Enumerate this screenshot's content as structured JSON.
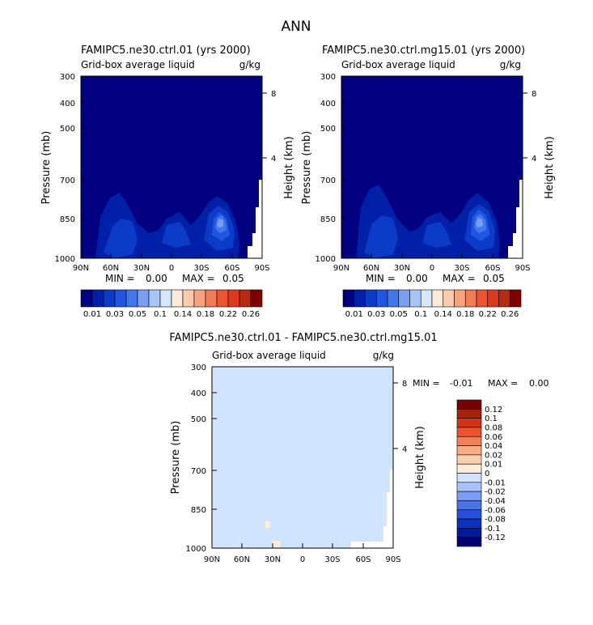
{
  "page": {
    "main_title": "ANN"
  },
  "colors": {
    "seq_levels": [
      "#000080",
      "#0020a8",
      "#0a3cc8",
      "#2056e0",
      "#4477ea",
      "#7a9ef2",
      "#a8c4f8",
      "#d6e6fd",
      "#fcebd8",
      "#fbcbae",
      "#f8a27e",
      "#f47a55",
      "#ee5431",
      "#dc3a1a",
      "#b82a10",
      "#800000"
    ],
    "diff_levels": [
      "#00006e",
      "#001a9c",
      "#0a30c2",
      "#2750e0",
      "#4a72ec",
      "#7b9ef4",
      "#a8c2fa",
      "#d2e4fd",
      "#fdecd8",
      "#fbd0b0",
      "#f8ac84",
      "#f28058",
      "#ea5530",
      "#d03616",
      "#a82008",
      "#780000"
    ]
  },
  "chart_data": [
    {
      "type": "contour",
      "title": "FAMIPC5.ne30.ctrl.01 (yrs 2000)",
      "subtitle": "Grid-box average liquid",
      "units": "g/kg",
      "ylabel": "Pressure (mb)",
      "ylabel_right": "Height (km)",
      "x_ticks": [
        "90N",
        "60N",
        "30N",
        "0",
        "30S",
        "60S",
        "90S"
      ],
      "y_ticks": [
        "300",
        "400",
        "500",
        "700",
        "850",
        "1000"
      ],
      "y_ticks_right": [
        "8",
        "4"
      ],
      "min_label": "MIN =",
      "min_value": "0.00",
      "max_label": "MAX =",
      "max_value": "0.05",
      "colorbar_labels": [
        "0.01",
        "0.03",
        "0.05",
        "0.1",
        "0.14",
        "0.18",
        "0.22",
        "0.26"
      ],
      "ylim": [
        1000,
        300
      ]
    },
    {
      "type": "contour",
      "title": "FAMIPC5.ne30.ctrl.mg15.01 (yrs 2000)",
      "subtitle": "Grid-box average liquid",
      "units": "g/kg",
      "ylabel": "Pressure (mb)",
      "ylabel_right": "Height (km)",
      "x_ticks": [
        "90N",
        "60N",
        "30N",
        "0",
        "30S",
        "60S",
        "90S"
      ],
      "y_ticks": [
        "300",
        "400",
        "500",
        "700",
        "850",
        "1000"
      ],
      "y_ticks_right": [
        "8",
        "4"
      ],
      "min_label": "MIN =",
      "min_value": "0.00",
      "max_label": "MAX =",
      "max_value": "0.05",
      "colorbar_labels": [
        "0.01",
        "0.03",
        "0.05",
        "0.1",
        "0.14",
        "0.18",
        "0.22",
        "0.26"
      ],
      "ylim": [
        1000,
        300
      ]
    },
    {
      "type": "contour",
      "title": "FAMIPC5.ne30.ctrl.01 - FAMIPC5.ne30.ctrl.mg15.01",
      "subtitle": "Grid-box average liquid",
      "units": "g/kg",
      "ylabel": "Pressure (mb)",
      "ylabel_right": "Height (km)",
      "x_ticks": [
        "90N",
        "60N",
        "30N",
        "0",
        "30S",
        "60S",
        "90S"
      ],
      "y_ticks": [
        "300",
        "400",
        "500",
        "700",
        "850",
        "1000"
      ],
      "y_ticks_right": [
        "8",
        "4"
      ],
      "min_label": "MIN =",
      "min_value": "-0.01",
      "max_label": "MAX =",
      "max_value": "0.00",
      "colorbar_labels": [
        "0.12",
        "0.1",
        "0.08",
        "0.06",
        "0.04",
        "0.02",
        "0.01",
        "0",
        "-0.01",
        "-0.02",
        "-0.04",
        "-0.06",
        "-0.08",
        "-0.1",
        "-0.12"
      ],
      "ylim": [
        1000,
        300
      ]
    }
  ]
}
